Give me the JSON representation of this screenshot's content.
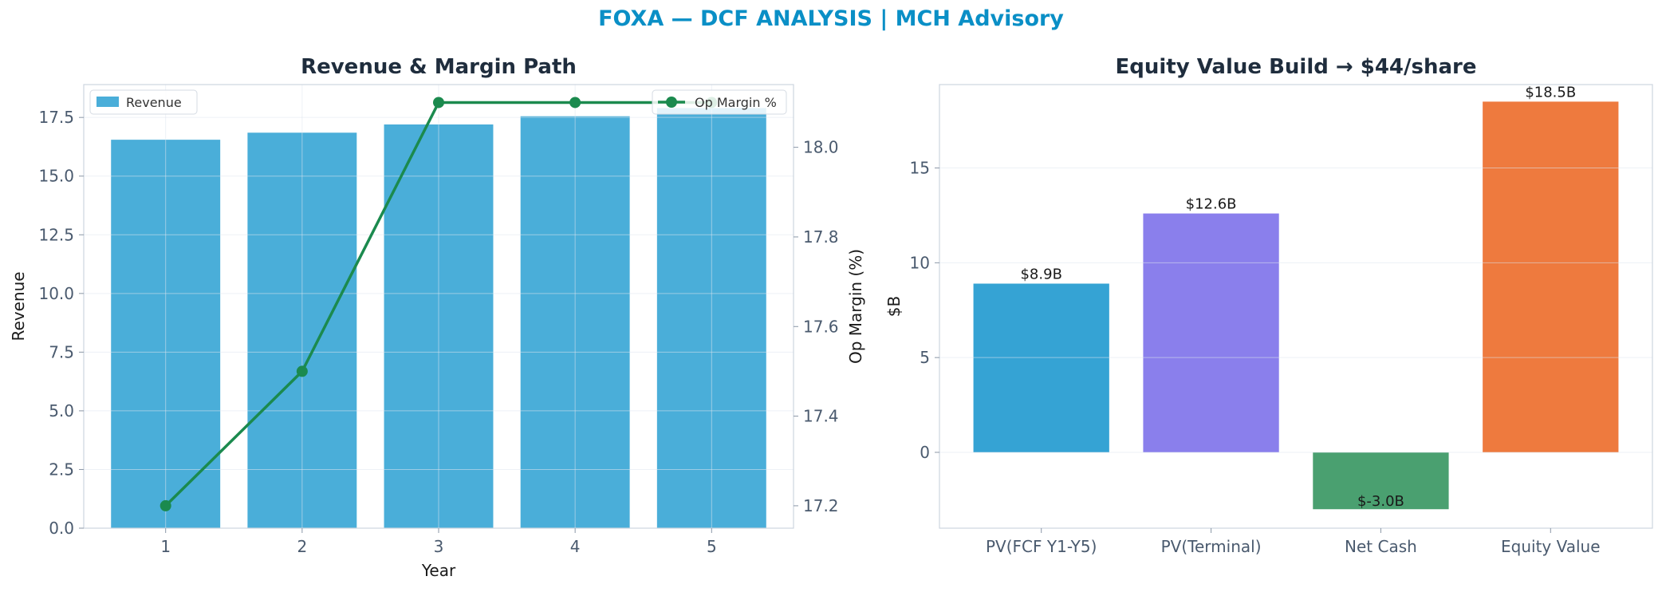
{
  "suptitle": "FOXA — DCF ANALYSIS | MCH Advisory",
  "colors": {
    "title": "#0a8fc6",
    "revenue_bar": "#4aaed9",
    "margin_line": "#1b8a4e",
    "pv_fcf": "#35a3d4",
    "pv_terminal": "#8a7fec",
    "net_cash": "#4aa070",
    "equity_value": "#ee7a3e"
  },
  "chart_data": [
    {
      "type": "bar",
      "title": "Revenue & Margin Path",
      "xlabel": "Year",
      "ylabel": "Revenue",
      "y2label": "Op Margin (%)",
      "categories": [
        "1",
        "2",
        "3",
        "4",
        "5"
      ],
      "series": [
        {
          "name": "Revenue",
          "type": "bar",
          "axis": "left",
          "values": [
            16.55,
            16.85,
            17.2,
            17.55,
            17.9
          ]
        },
        {
          "name": "Op Margin %",
          "type": "line",
          "axis": "right",
          "values": [
            17.2,
            17.5,
            18.1,
            18.1,
            18.1
          ]
        }
      ],
      "ylim": [
        0,
        18.9
      ],
      "y2lim": [
        17.15,
        18.14
      ],
      "yticks": [
        "0.0",
        "2.5",
        "5.0",
        "7.5",
        "10.0",
        "12.5",
        "15.0",
        "17.5"
      ],
      "y2ticks": [
        "17.2",
        "17.4",
        "17.6",
        "17.8",
        "18.0"
      ],
      "grid": true,
      "legend": [
        "top-left",
        "top-right"
      ]
    },
    {
      "type": "bar",
      "title": "Equity Value Build → $44/share",
      "xlabel": "",
      "ylabel": "$B",
      "categories": [
        "PV(FCF Y1-Y5)",
        "PV(Terminal)",
        "Net Cash",
        "Equity Value"
      ],
      "values": [
        8.9,
        12.6,
        -3.0,
        18.5
      ],
      "data_labels": [
        "$8.9B",
        "$12.6B",
        "$-3.0B",
        "$18.5B"
      ],
      "ylim": [
        -4.0,
        19.4
      ],
      "yticks": [
        "0",
        "5",
        "10",
        "15"
      ],
      "grid": true
    }
  ]
}
